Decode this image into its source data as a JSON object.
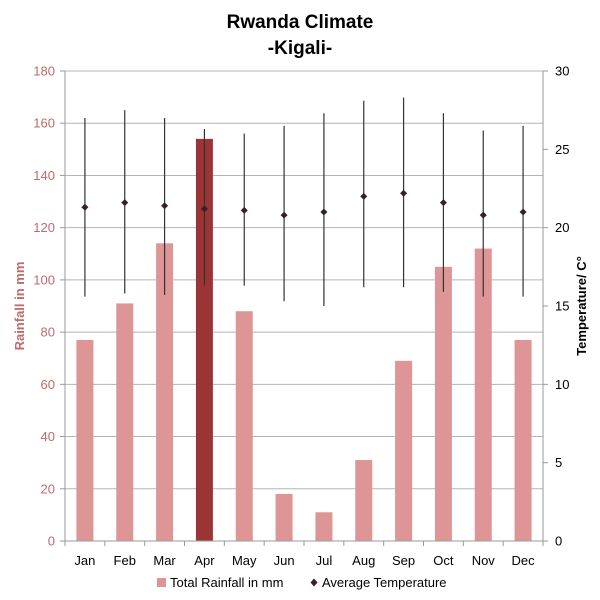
{
  "chart_data": {
    "type": "bar",
    "title": "Rwanda Climate",
    "subtitle": "-Kigali-",
    "categories": [
      "Jan",
      "Feb",
      "Mar",
      "Apr",
      "May",
      "Jun",
      "Jul",
      "Aug",
      "Sep",
      "Oct",
      "Nov",
      "Dec"
    ],
    "series": [
      {
        "name": "Total Rainfall in mm",
        "type": "bar",
        "axis": "left",
        "values": [
          77,
          91,
          114,
          154,
          88,
          18,
          11,
          31,
          69,
          105,
          112,
          77
        ],
        "color": "#dd9595",
        "highlight_index": 3,
        "highlight_color": "#9b3535"
      },
      {
        "name": "Average Temperature",
        "type": "scatter-errorbar",
        "axis": "right",
        "values": [
          21.3,
          21.6,
          21.4,
          21.2,
          21.1,
          20.8,
          21.0,
          22.0,
          22.2,
          21.6,
          20.8,
          21.0
        ],
        "high": [
          27.0,
          27.5,
          27.0,
          26.3,
          26.0,
          26.5,
          27.3,
          28.1,
          28.3,
          27.3,
          26.2,
          26.5
        ],
        "low": [
          15.6,
          15.8,
          15.7,
          16.3,
          16.3,
          15.3,
          15.0,
          16.2,
          16.2,
          15.9,
          15.6,
          15.6
        ],
        "color": "#3a1f2a"
      }
    ],
    "ylabel": "Rainfall in mm",
    "ylim": [
      0,
      180
    ],
    "yticks": [
      0,
      20,
      40,
      60,
      80,
      100,
      120,
      140,
      160,
      180
    ],
    "y2label": "Temperature/ C°",
    "y2lim": [
      0,
      30
    ],
    "y2ticks": [
      0,
      5,
      10,
      15,
      20,
      25,
      30
    ],
    "grid": true,
    "legend_position": "bottom",
    "colors": {
      "axis_left_text": "#c06a6a",
      "gridline": "#b5b5b5"
    }
  }
}
